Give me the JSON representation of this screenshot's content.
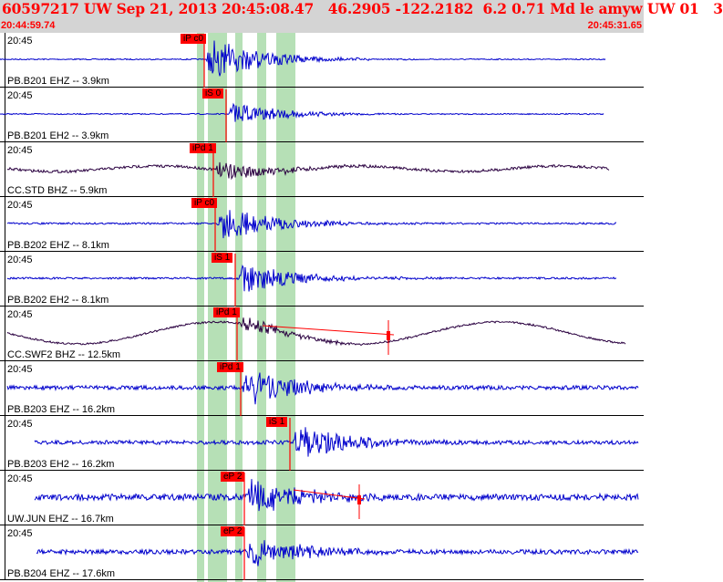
{
  "header": {
    "title": "60597217 UW Sep 21, 2013 20:45:08.47   46.2905 -122.2182  6.2 0.71 Md le amyw UW 01   3",
    "start_time": "20:44:59.74",
    "end_time": "20:45:31.65"
  },
  "colors": {
    "header_bg": "#d4d4d4",
    "header_text": "#ff0000",
    "trace_blue": "#0000cc",
    "trace_dark": "#2a0040",
    "pick_line": "#ff0000",
    "pick_label_bg": "#ff0000",
    "phase_band": "#b6e0b6"
  },
  "traces": [
    {
      "time": "20:45",
      "station": "PB.B201 EHZ -- 3.9km",
      "pick": "iP c0",
      "color": "blue",
      "amp": 26,
      "noise": 0.6,
      "onset": 0.33,
      "wave": 0
    },
    {
      "time": "20:45",
      "station": "PB.B201 EH2 -- 3.9km",
      "pick": "iS 0",
      "color": "blue",
      "amp": 14,
      "noise": 0.6,
      "onset": 0.35,
      "wave": 0
    },
    {
      "time": "20:45",
      "station": "CC.STD BHZ -- 5.9km",
      "pick": "iPd 1",
      "color": "dark",
      "amp": 12,
      "noise": 1.5,
      "onset": 0.34,
      "wave": 3
    },
    {
      "time": "20:45",
      "station": "PB.B202 EHZ -- 8.1km",
      "pick": "iP c0",
      "color": "blue",
      "amp": 22,
      "noise": 1.0,
      "onset": 0.34,
      "wave": 0
    },
    {
      "time": "20:45",
      "station": "PB.B202 EH2 -- 8.1km",
      "pick": "iS 1",
      "color": "blue",
      "amp": 20,
      "noise": 1.0,
      "onset": 0.38,
      "wave": 0
    },
    {
      "time": "20:45",
      "station": "CC.SWF2 BHZ -- 12.5km",
      "pick": "iPd 1",
      "color": "dark",
      "amp": 10,
      "noise": 1.0,
      "onset": 0.37,
      "wave": 12
    },
    {
      "time": "20:45",
      "station": "PB.B203 EHZ -- 16.2km",
      "pick": "iPd 1",
      "color": "blue",
      "amp": 24,
      "noise": 2.2,
      "onset": 0.37,
      "wave": 0
    },
    {
      "time": "20:45",
      "station": "PB.B203 EH2 -- 16.2km",
      "pick": "iS 1",
      "color": "blue",
      "amp": 22,
      "noise": 2.2,
      "onset": 0.44,
      "wave": 0
    },
    {
      "time": "20:45",
      "station": "UW.JUN EHZ -- 16.7km",
      "pick": "eP 2",
      "color": "blue",
      "amp": 22,
      "noise": 3.5,
      "onset": 0.37,
      "wave": 0
    },
    {
      "time": "20:45",
      "station": "PB.B204 EHZ -- 17.6km",
      "pick": "eP 2",
      "color": "blue",
      "amp": 20,
      "noise": 2.5,
      "onset": 0.37,
      "wave": 0
    }
  ]
}
